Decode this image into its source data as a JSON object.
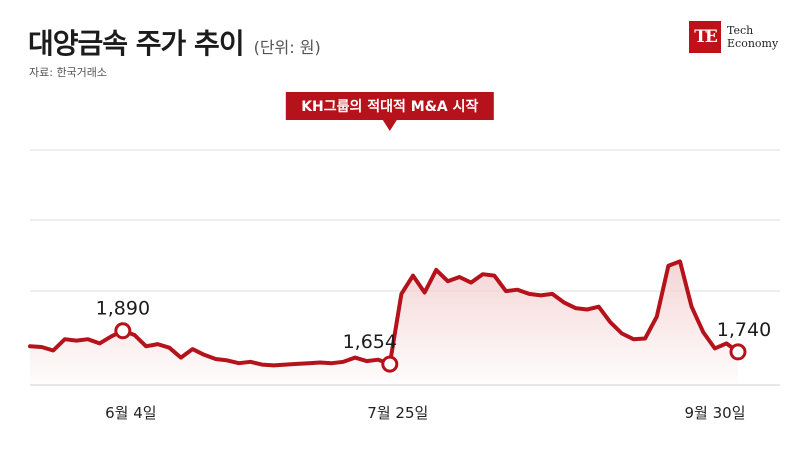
{
  "header": {
    "title": "대양금속 주가 추이",
    "unit": "(단위: 원)",
    "source": "자료: 한국거래소"
  },
  "brand": {
    "mark": "TE",
    "line1": "Tech",
    "line2": "Economy",
    "color": "#c0101a"
  },
  "chart_data": {
    "type": "area",
    "title": "대양금속 주가 추이",
    "unit": "원",
    "x_tick_labels": [
      "6월 4일",
      "7월 25일",
      "9월 30일"
    ],
    "values": [
      1780,
      1775,
      1750,
      1830,
      1820,
      1830,
      1800,
      1850,
      1890,
      1860,
      1780,
      1795,
      1770,
      1700,
      1760,
      1720,
      1690,
      1680,
      1660,
      1670,
      1650,
      1645,
      1650,
      1655,
      1660,
      1665,
      1660,
      1670,
      1700,
      1675,
      1685,
      1654,
      2150,
      2280,
      2160,
      2320,
      2240,
      2270,
      2230,
      2290,
      2280,
      2170,
      2180,
      2150,
      2140,
      2150,
      2090,
      2050,
      2040,
      2060,
      1950,
      1870,
      1830,
      1835,
      1990,
      2350,
      2380,
      2060,
      1880,
      1765,
      1800,
      1740
    ],
    "annotated_points": [
      {
        "index": 8,
        "label": "1,890"
      },
      {
        "index": 31,
        "label": "1,654"
      },
      {
        "index": 61,
        "label": "1,740"
      }
    ],
    "callout": {
      "index": 31,
      "text": "KH그룹의 적대적 M&A 시작"
    },
    "line_color": "#b5121b",
    "fill_color": "#f4d3d3"
  }
}
